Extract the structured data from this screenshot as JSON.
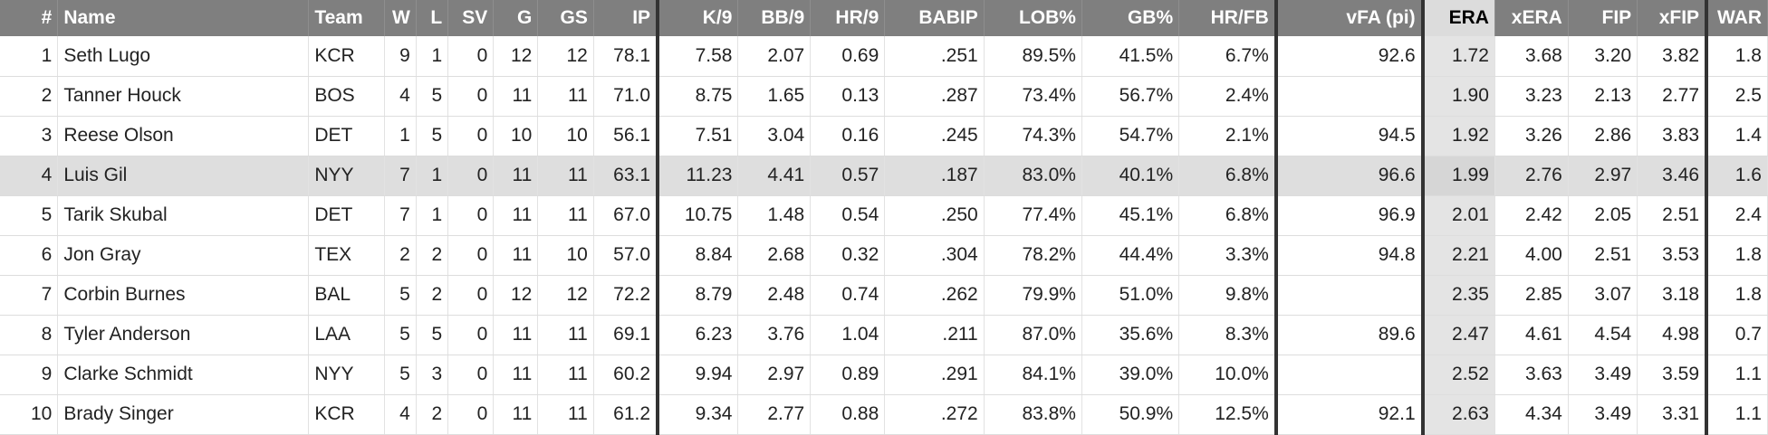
{
  "columns": [
    {
      "key": "rank",
      "label": "#",
      "align": "r"
    },
    {
      "key": "name",
      "label": "Name",
      "align": "l"
    },
    {
      "key": "team",
      "label": "Team",
      "align": "l"
    },
    {
      "key": "w",
      "label": "W",
      "align": "r"
    },
    {
      "key": "l",
      "label": "L",
      "align": "r"
    },
    {
      "key": "sv",
      "label": "SV",
      "align": "r"
    },
    {
      "key": "g",
      "label": "G",
      "align": "r"
    },
    {
      "key": "gs",
      "label": "GS",
      "align": "r"
    },
    {
      "key": "ip",
      "label": "IP",
      "align": "r"
    },
    {
      "key": "k9",
      "label": "K/9",
      "align": "r"
    },
    {
      "key": "bb9",
      "label": "BB/9",
      "align": "r"
    },
    {
      "key": "hr9",
      "label": "HR/9",
      "align": "r"
    },
    {
      "key": "babip",
      "label": "BABIP",
      "align": "r"
    },
    {
      "key": "lob",
      "label": "LOB%",
      "align": "r"
    },
    {
      "key": "gb",
      "label": "GB%",
      "align": "r"
    },
    {
      "key": "hrfb",
      "label": "HR/FB",
      "align": "r"
    },
    {
      "key": "vfa",
      "label": "vFA (pi)",
      "align": "r"
    },
    {
      "key": "era",
      "label": "ERA",
      "align": "r"
    },
    {
      "key": "xera",
      "label": "xERA",
      "align": "r"
    },
    {
      "key": "fip",
      "label": "FIP",
      "align": "r"
    },
    {
      "key": "xfip",
      "label": "xFIP",
      "align": "r"
    },
    {
      "key": "war",
      "label": "WAR",
      "align": "r"
    }
  ],
  "rows": [
    [
      "1",
      "Seth Lugo",
      "KCR",
      "9",
      "1",
      "0",
      "12",
      "12",
      "78.1",
      "7.58",
      "2.07",
      "0.69",
      ".251",
      "89.5%",
      "41.5%",
      "6.7%",
      "92.6",
      "1.72",
      "3.68",
      "3.20",
      "3.82",
      "1.8"
    ],
    [
      "2",
      "Tanner Houck",
      "BOS",
      "4",
      "5",
      "0",
      "11",
      "11",
      "71.0",
      "8.75",
      "1.65",
      "0.13",
      ".287",
      "73.4%",
      "56.7%",
      "2.4%",
      "",
      "1.90",
      "3.23",
      "2.13",
      "2.77",
      "2.5"
    ],
    [
      "3",
      "Reese Olson",
      "DET",
      "1",
      "5",
      "0",
      "10",
      "10",
      "56.1",
      "7.51",
      "3.04",
      "0.16",
      ".245",
      "74.3%",
      "54.7%",
      "2.1%",
      "94.5",
      "1.92",
      "3.26",
      "2.86",
      "3.83",
      "1.4"
    ],
    [
      "4",
      "Luis Gil",
      "NYY",
      "7",
      "1",
      "0",
      "11",
      "11",
      "63.1",
      "11.23",
      "4.41",
      "0.57",
      ".187",
      "83.0%",
      "40.1%",
      "6.8%",
      "96.6",
      "1.99",
      "2.76",
      "2.97",
      "3.46",
      "1.6"
    ],
    [
      "5",
      "Tarik Skubal",
      "DET",
      "7",
      "1",
      "0",
      "11",
      "11",
      "67.0",
      "10.75",
      "1.48",
      "0.54",
      ".250",
      "77.4%",
      "45.1%",
      "6.8%",
      "96.9",
      "2.01",
      "2.42",
      "2.05",
      "2.51",
      "2.4"
    ],
    [
      "6",
      "Jon Gray",
      "TEX",
      "2",
      "2",
      "0",
      "11",
      "10",
      "57.0",
      "8.84",
      "2.68",
      "0.32",
      ".304",
      "78.2%",
      "44.4%",
      "3.3%",
      "94.8",
      "2.21",
      "4.00",
      "2.51",
      "3.53",
      "1.8"
    ],
    [
      "7",
      "Corbin Burnes",
      "BAL",
      "5",
      "2",
      "0",
      "12",
      "12",
      "72.2",
      "8.79",
      "2.48",
      "0.74",
      ".262",
      "79.9%",
      "51.0%",
      "9.8%",
      "",
      "2.35",
      "2.85",
      "3.07",
      "3.18",
      "1.8"
    ],
    [
      "8",
      "Tyler Anderson",
      "LAA",
      "5",
      "5",
      "0",
      "11",
      "11",
      "69.1",
      "6.23",
      "3.76",
      "1.04",
      ".211",
      "87.0%",
      "35.6%",
      "8.3%",
      "89.6",
      "2.47",
      "4.61",
      "4.54",
      "4.98",
      "0.7"
    ],
    [
      "9",
      "Clarke Schmidt",
      "NYY",
      "5",
      "3",
      "0",
      "11",
      "11",
      "60.2",
      "9.94",
      "2.97",
      "0.89",
      ".291",
      "84.1%",
      "39.0%",
      "10.0%",
      "",
      "2.52",
      "3.63",
      "3.49",
      "3.59",
      "1.1"
    ],
    [
      "10",
      "Brady Singer",
      "KCR",
      "4",
      "2",
      "0",
      "11",
      "11",
      "61.2",
      "9.34",
      "2.77",
      "0.88",
      ".272",
      "83.8%",
      "50.9%",
      "12.5%",
      "92.1",
      "2.63",
      "4.34",
      "3.49",
      "3.31",
      "1.1"
    ]
  ]
}
